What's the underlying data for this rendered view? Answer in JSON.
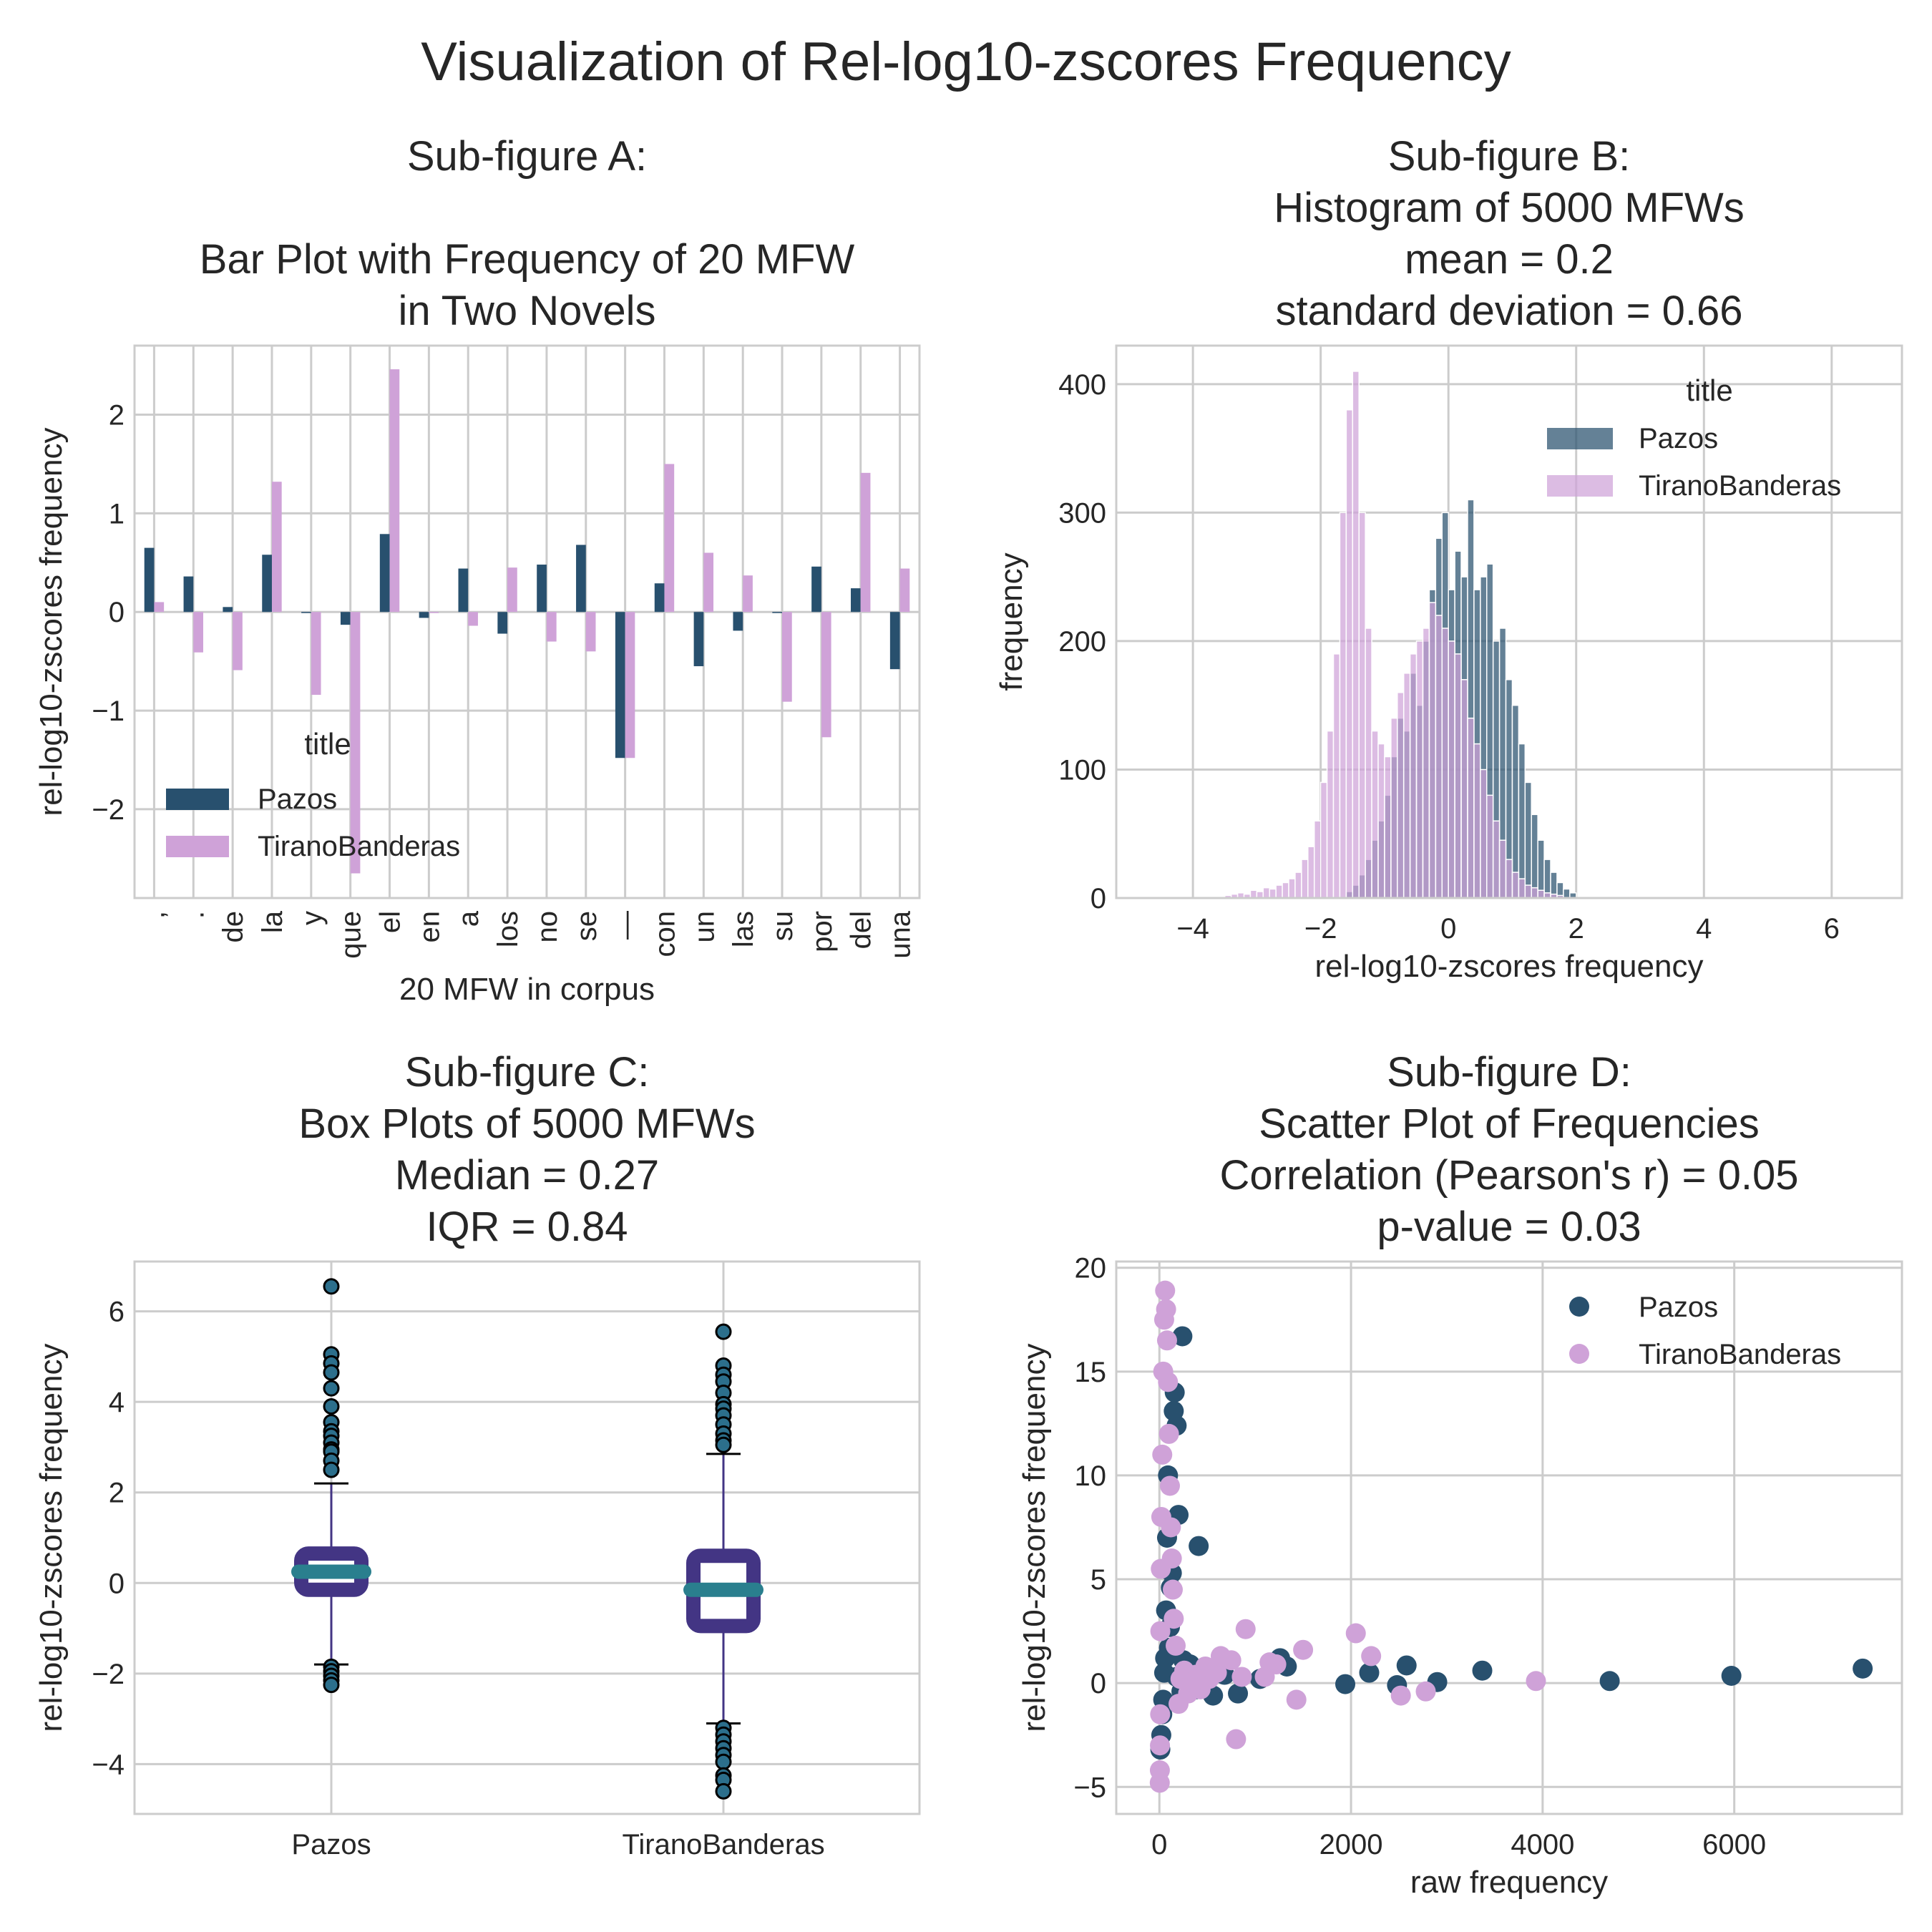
{
  "figure": {
    "title": "Visualization of Rel-log10-zscores Frequency"
  },
  "colors": {
    "pazos": "#28506e",
    "tirano": "#cfa2d8",
    "box_edge": "#433584",
    "box_median": "#2a7f8e",
    "grid": "#cccccc",
    "frame": "#cccccc"
  },
  "chart_data": [
    {
      "id": "A",
      "type": "bar",
      "title_lines": [
        "Sub-figure A:",
        "",
        "Bar Plot with Frequency of 20 MFW",
        "in Two Novels"
      ],
      "xlabel": "20 MFW in corpus",
      "ylabel": "rel-log10-zscores frequency",
      "ylim": [
        -2.9,
        2.7
      ],
      "yticks": [
        -2,
        -1,
        0,
        1,
        2
      ],
      "ytick_labels": [
        "−2",
        "−1",
        "0",
        "1",
        "2"
      ],
      "categories": [
        ",",
        ".",
        "de",
        "la",
        "y",
        "que",
        "el",
        "en",
        "a",
        "los",
        "no",
        "se",
        "—",
        "con",
        "un",
        "las",
        "su",
        "por",
        "del",
        "una"
      ],
      "series": [
        {
          "name": "Pazos",
          "color": "#28506e",
          "values": [
            0.65,
            0.36,
            0.05,
            0.58,
            -0.01,
            -0.13,
            0.79,
            -0.06,
            0.44,
            -0.22,
            0.48,
            0.68,
            -1.48,
            0.29,
            -0.55,
            -0.19,
            -0.01,
            0.46,
            0.24,
            -0.58
          ]
        },
        {
          "name": "TiranoBanderas",
          "color": "#cfa2d8",
          "values": [
            0.1,
            -0.41,
            -0.59,
            1.32,
            -0.84,
            -2.65,
            2.46,
            -0.01,
            -0.14,
            0.45,
            -0.3,
            -0.4,
            -1.48,
            1.5,
            0.6,
            0.37,
            -0.91,
            -1.27,
            1.41,
            0.44
          ]
        }
      ],
      "legend": {
        "title": "title",
        "placement": "lower-left",
        "entries": [
          "Pazos",
          "TiranoBanderas"
        ]
      }
    },
    {
      "id": "B",
      "type": "bar",
      "subtype": "histogram",
      "title_lines": [
        "Sub-figure B:",
        "Histogram of 5000 MFWs",
        "mean =  0.2",
        "standard deviation = 0.66"
      ],
      "xlabel": "rel-log10-zscores frequency",
      "ylabel": "frequency",
      "xlim": [
        -5.2,
        7.1
      ],
      "ylim": [
        0,
        430
      ],
      "xticks": [
        -4,
        -2,
        0,
        2,
        4,
        6
      ],
      "xtick_labels": [
        "−4",
        "−2",
        "0",
        "2",
        "4",
        "6"
      ],
      "yticks": [
        0,
        100,
        200,
        300,
        400
      ],
      "ytick_labels": [
        "0",
        "100",
        "200",
        "300",
        "400"
      ],
      "series": [
        {
          "name": "Pazos",
          "color": "#28506e",
          "bin_start": -1.6,
          "bin_width": 0.1,
          "counts": [
            5,
            10,
            18,
            30,
            45,
            60,
            80,
            110,
            140,
            130,
            175,
            150,
            200,
            240,
            280,
            300,
            240,
            270,
            250,
            310,
            240,
            250,
            260,
            200,
            210,
            170,
            150,
            120,
            90,
            65,
            45,
            30,
            20,
            12,
            7,
            4
          ]
        },
        {
          "name": "TiranoBanderas",
          "color": "#cfa2d8",
          "bin_start": -3.5,
          "bin_width": 0.1,
          "counts": [
            2,
            3,
            4,
            3,
            6,
            5,
            8,
            7,
            10,
            12,
            15,
            20,
            30,
            40,
            60,
            90,
            130,
            190,
            300,
            380,
            410,
            300,
            210,
            130,
            120,
            110,
            140,
            160,
            175,
            190,
            200,
            210,
            230,
            220,
            210,
            200,
            190,
            170,
            140,
            120,
            100,
            80,
            60,
            45,
            30,
            20,
            15,
            10,
            8,
            6,
            4,
            3,
            2
          ]
        }
      ],
      "legend": {
        "title": "title",
        "placement": "top-right",
        "entries": [
          "Pazos",
          "TiranoBanderas"
        ]
      }
    },
    {
      "id": "C",
      "type": "box",
      "title_lines": [
        "Sub-figure C:",
        "Box Plots of 5000 MFWs",
        "Median =  0.27",
        "IQR = 0.84"
      ],
      "ylabel": "rel-log10-zscores frequency",
      "ylim": [
        -5.1,
        7.1
      ],
      "yticks": [
        -4,
        -2,
        0,
        2,
        4,
        6
      ],
      "ytick_labels": [
        "−4",
        "−2",
        "0",
        "2",
        "4",
        "6"
      ],
      "categories": [
        "Pazos",
        "TiranoBanderas"
      ],
      "boxes": [
        {
          "name": "Pazos",
          "q1": -0.15,
          "median": 0.25,
          "q3": 0.65,
          "whisker_low": -1.8,
          "whisker_high": 2.2,
          "outliers": [
            6.55,
            5.05,
            4.85,
            4.65,
            4.3,
            3.9,
            3.55,
            3.35,
            3.25,
            3.1,
            2.95,
            2.9,
            2.7,
            2.5,
            -1.85,
            -1.95,
            -2.05,
            -2.15,
            -2.25
          ]
        },
        {
          "name": "TiranoBanderas",
          "q1": -0.95,
          "median": -0.15,
          "q3": 0.6,
          "whisker_low": -3.1,
          "whisker_high": 2.85,
          "outliers": [
            5.55,
            4.8,
            4.6,
            4.45,
            4.2,
            3.95,
            3.85,
            3.7,
            3.5,
            3.3,
            3.15,
            3.05,
            -3.2,
            -3.35,
            -3.5,
            -3.65,
            -3.8,
            -3.95,
            -4.25,
            -4.35,
            -4.6
          ]
        }
      ]
    },
    {
      "id": "D",
      "type": "scatter",
      "title_lines": [
        "Sub-figure D:",
        "Scatter Plot of Frequencies",
        "Correlation (Pearson's r) =  0.05",
        "p-value = 0.03"
      ],
      "xlabel": "raw frequency",
      "ylabel": "rel-log10-zscores frequency",
      "xlim": [
        -450,
        7750
      ],
      "ylim": [
        -6.3,
        20.3
      ],
      "xticks": [
        0,
        2000,
        4000,
        6000
      ],
      "xtick_labels": [
        "0",
        "2000",
        "4000",
        "6000"
      ],
      "yticks": [
        -5,
        0,
        5,
        10,
        15,
        20
      ],
      "ytick_labels": [
        "−5",
        "0",
        "5",
        "10",
        "15",
        "20"
      ],
      "series": [
        {
          "name": "Pazos",
          "color": "#28506e",
          "points": [
            [
              7340,
              0.7
            ],
            [
              5970,
              0.35
            ],
            [
              4700,
              0.1
            ],
            [
              3370,
              0.6
            ],
            [
              2900,
              0.05
            ],
            [
              2580,
              0.85
            ],
            [
              2480,
              -0.1
            ],
            [
              2190,
              0.5
            ],
            [
              1940,
              -0.05
            ],
            [
              1330,
              0.8
            ],
            [
              1260,
              1.2
            ],
            [
              1050,
              0.2
            ],
            [
              820,
              -0.5
            ],
            [
              680,
              0.4
            ],
            [
              560,
              -0.6
            ],
            [
              470,
              0.7
            ],
            [
              380,
              -0.3
            ],
            [
              320,
              0.9
            ],
            [
              250,
              1.1
            ],
            [
              230,
              -0.4
            ],
            [
              180,
              0.3
            ],
            [
              410,
              6.6
            ],
            [
              240,
              16.7
            ],
            [
              200,
              8.1
            ],
            [
              180,
              12.4
            ],
            [
              160,
              14.0
            ],
            [
              150,
              13.1
            ],
            [
              130,
              5.3
            ],
            [
              120,
              4.6
            ],
            [
              110,
              2.7
            ],
            [
              100,
              1.7
            ],
            [
              90,
              10.0
            ],
            [
              80,
              7.0
            ],
            [
              70,
              3.5
            ],
            [
              60,
              1.2
            ],
            [
              50,
              0.5
            ],
            [
              40,
              -0.8
            ],
            [
              30,
              -1.5
            ],
            [
              20,
              -2.5
            ],
            [
              10,
              -3.2
            ]
          ]
        },
        {
          "name": "TiranoBanderas",
          "color": "#cfa2d8",
          "points": [
            [
              3930,
              0.1
            ],
            [
              2780,
              -0.4
            ],
            [
              2520,
              -0.6
            ],
            [
              2210,
              1.3
            ],
            [
              2050,
              2.4
            ],
            [
              1500,
              1.6
            ],
            [
              1430,
              -0.8
            ],
            [
              1220,
              0.9
            ],
            [
              1150,
              1.0
            ],
            [
              1100,
              0.3
            ],
            [
              900,
              2.6
            ],
            [
              860,
              0.3
            ],
            [
              800,
              -2.7
            ],
            [
              750,
              1.1
            ],
            [
              640,
              1.3
            ],
            [
              600,
              0.5
            ],
            [
              520,
              0.2
            ],
            [
              480,
              0.8
            ],
            [
              430,
              -0.3
            ],
            [
              380,
              0.4
            ],
            [
              340,
              0.1
            ],
            [
              300,
              -0.5
            ],
            [
              260,
              0.6
            ],
            [
              220,
              0.2
            ],
            [
              200,
              -1.0
            ],
            [
              170,
              1.8
            ],
            [
              150,
              3.1
            ],
            [
              140,
              4.5
            ],
            [
              130,
              6.0
            ],
            [
              120,
              7.5
            ],
            [
              110,
              9.5
            ],
            [
              100,
              12.0
            ],
            [
              90,
              14.5
            ],
            [
              80,
              16.5
            ],
            [
              70,
              18.0
            ],
            [
              60,
              18.9
            ],
            [
              50,
              17.5
            ],
            [
              40,
              15.0
            ],
            [
              30,
              11.0
            ],
            [
              20,
              8.0
            ],
            [
              15,
              5.5
            ],
            [
              10,
              2.5
            ],
            [
              8,
              -1.5
            ],
            [
              6,
              -3.0
            ],
            [
              5,
              -4.2
            ],
            [
              4,
              -4.8
            ]
          ]
        }
      ],
      "legend": {
        "placement": "top-right",
        "entries": [
          "Pazos",
          "TiranoBanderas"
        ]
      }
    }
  ]
}
